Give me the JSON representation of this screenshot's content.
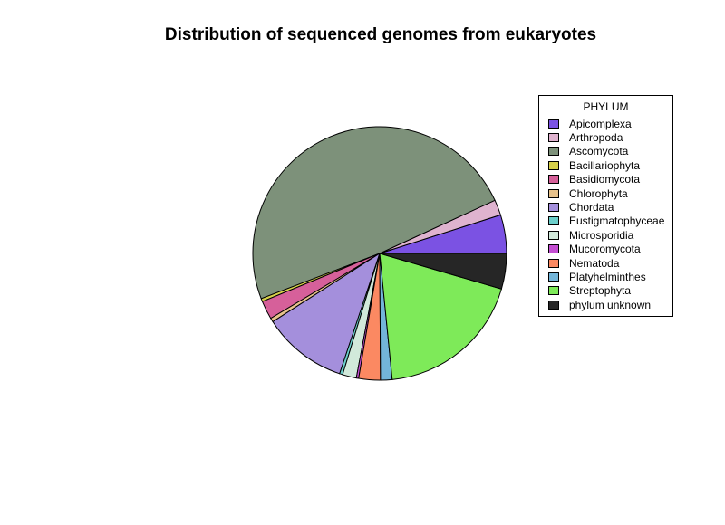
{
  "chart_data": {
    "type": "pie",
    "title": "Distribution of sequenced genomes from eukaryotes",
    "legend": {
      "title": "PHYLUM",
      "placement": "right"
    },
    "categories": [
      "Apicomplexa",
      "Arthropoda",
      "Ascomycota",
      "Bacillariophyta",
      "Basidiomycota",
      "Chlorophyta",
      "Chordata",
      "Eustigmatophyceae",
      "Microsporidia",
      "Mucoromycota",
      "Nematoda",
      "Platyhelminthes",
      "Streptophyta",
      "phylum unknown"
    ],
    "values": [
      5.0,
      2.0,
      49.7,
      0.4,
      2.4,
      0.5,
      11.0,
      0.4,
      1.8,
      0.3,
      2.8,
      1.5,
      19.2,
      4.6
    ],
    "colors": [
      "#7b52e3",
      "#dfb3cf",
      "#7d917a",
      "#d6d04a",
      "#d6609a",
      "#e7c28c",
      "#a48fdc",
      "#6ccfcb",
      "#d1e9da",
      "#c44ed2",
      "#fb8962",
      "#73b5d9",
      "#7eea59",
      "#262626"
    ]
  }
}
